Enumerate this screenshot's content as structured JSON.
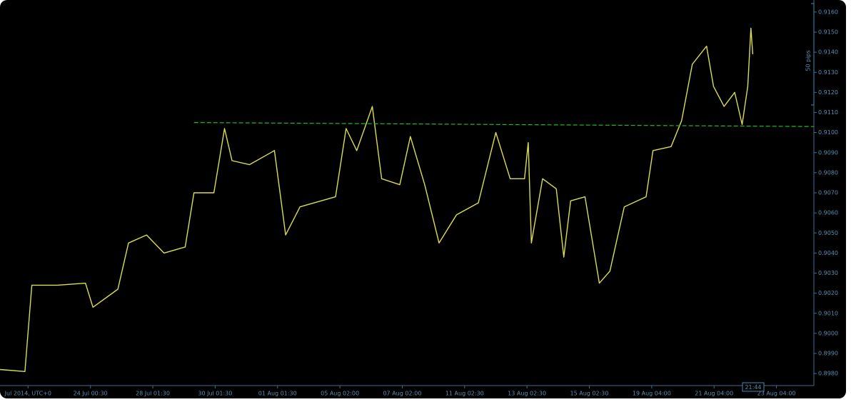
{
  "chart_data": {
    "type": "line",
    "series": [
      {
        "color": "#dcdc50",
        "x": [
          -4.5,
          -0.5,
          0.6,
          4.7,
          9.2,
          10.4,
          14.4,
          16.1,
          19.0,
          21.8,
          25.2,
          26.6,
          29.8,
          31.5,
          32.7,
          35.5,
          39.5,
          41.3,
          43.6,
          49.3,
          51.0,
          52.7,
          55.2,
          56.7,
          59.6,
          61.3,
          63.6,
          65.9,
          68.7,
          72.2,
          75.0,
          77.3,
          79.6,
          80.2,
          80.7,
          82.5,
          84.7,
          85.9,
          87.0,
          89.3,
          91.6,
          93.3,
          95.6,
          99.1,
          100.2,
          103.1,
          104.8,
          106.5,
          108.8,
          109.9,
          111.6,
          113.3,
          114.5,
          115.4,
          115.9,
          116.2
        ],
        "values": [
          0.8982,
          0.8981,
          0.9024,
          0.9024,
          0.9025,
          0.9013,
          0.9022,
          0.9045,
          0.9049,
          0.904,
          0.9043,
          0.907,
          0.907,
          0.9102,
          0.9086,
          0.9084,
          0.9091,
          0.9049,
          0.9063,
          0.9068,
          0.9102,
          0.9091,
          0.9113,
          0.9077,
          0.9074,
          0.9098,
          0.9074,
          0.9045,
          0.9059,
          0.9065,
          0.91,
          0.9077,
          0.9077,
          0.9095,
          0.9045,
          0.9077,
          0.9072,
          0.9038,
          0.9066,
          0.9068,
          0.9025,
          0.9031,
          0.9063,
          0.9068,
          0.9091,
          0.9093,
          0.9106,
          0.9134,
          0.9143,
          0.9123,
          0.9113,
          0.912,
          0.9104,
          0.9123,
          0.9152,
          0.9139
        ]
      },
      {
        "color": "#22bb22",
        "dashed": true,
        "x": [
          26.6,
          126
        ],
        "values": [
          0.9105,
          0.9103
        ]
      }
    ],
    "xlim": [
      -4.5,
      126
    ],
    "xticks": [
      {
        "value": 0,
        "label": "Jul 2014, UTC+0"
      },
      {
        "value": 10,
        "label": "24 Jul 00:30"
      },
      {
        "value": 20,
        "label": "28 Jul 01:30"
      },
      {
        "value": 30,
        "label": "30 Jul 01:30"
      },
      {
        "value": 40,
        "label": "01 Aug 01:30"
      },
      {
        "value": 50,
        "label": "05 Aug 02:00"
      },
      {
        "value": 60,
        "label": "07 Aug 02:00"
      },
      {
        "value": 70,
        "label": "11 Aug 02:30"
      },
      {
        "value": 80,
        "label": "13 Aug 02:30"
      },
      {
        "value": 90,
        "label": "15 Aug 02:30"
      },
      {
        "value": 100,
        "label": "19 Aug 04:00"
      },
      {
        "value": 110,
        "label": "21 Aug 04:00"
      },
      {
        "value": 120,
        "label": "23 Aug 04:00"
      }
    ],
    "ylim": [
      0.8974,
      0.9166
    ],
    "yticks": [
      {
        "value": 0.898,
        "label": "0.8980"
      },
      {
        "value": 0.899,
        "label": "0.8990"
      },
      {
        "value": 0.9,
        "label": "0.9000"
      },
      {
        "value": 0.901,
        "label": "0.9010"
      },
      {
        "value": 0.902,
        "label": "0.9020"
      },
      {
        "value": 0.903,
        "label": "0.9030"
      },
      {
        "value": 0.904,
        "label": "0.9040"
      },
      {
        "value": 0.905,
        "label": "0.9050"
      },
      {
        "value": 0.906,
        "label": "0.9060"
      },
      {
        "value": 0.907,
        "label": "0.9070"
      },
      {
        "value": 0.908,
        "label": "0.9080"
      },
      {
        "value": 0.909,
        "label": "0.9090"
      },
      {
        "value": 0.91,
        "label": "0.9100"
      },
      {
        "value": 0.911,
        "label": "0.9110"
      },
      {
        "value": 0.912,
        "label": "0.9120"
      },
      {
        "value": 0.913,
        "label": "0.9130"
      },
      {
        "value": 0.914,
        "label": "0.9140"
      },
      {
        "value": 0.915,
        "label": "0.9150"
      },
      {
        "value": 0.916,
        "label": "0.9160"
      }
    ],
    "pip_scale_label": "50 pips",
    "cursor_time_label": "21:44"
  }
}
